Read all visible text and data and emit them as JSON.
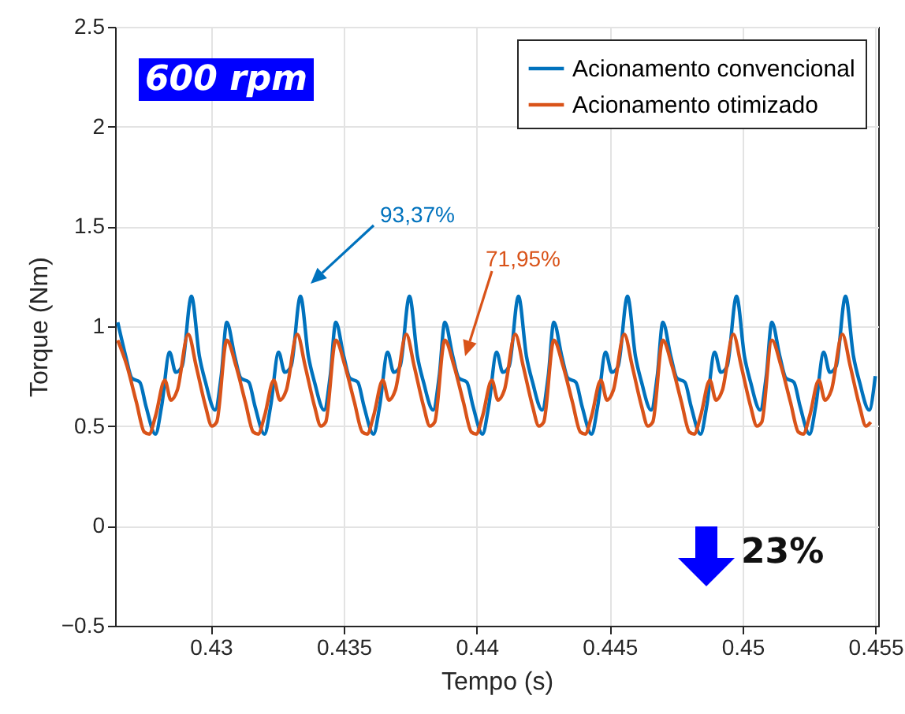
{
  "chart_data": {
    "type": "line",
    "xlabel": "Tempo (s)",
    "ylabel": "Torque (Nm)",
    "xlim": [
      0.4264,
      0.4551
    ],
    "ylim": [
      -0.5,
      2.5
    ],
    "xticks": [
      0.43,
      0.435,
      0.44,
      0.445,
      0.45,
      0.455
    ],
    "yticks": [
      -0.5,
      0,
      0.5,
      1,
      1.5,
      2,
      2.5
    ],
    "grid": true,
    "legend": "top right",
    "series": [
      {
        "name": "Acionamento convencional",
        "color": "#0072bd",
        "x": [
          0.4265,
          0.4268,
          0.42703,
          0.42733,
          0.42756,
          0.42792,
          0.42815,
          0.42845,
          0.42868,
          0.42892,
          0.42927,
          0.42957,
          0.4298,
          0.43016,
          0.43039,
          0.4306,
          0.4309,
          0.43113,
          0.43143,
          0.43166,
          0.43202,
          0.43225,
          0.43255,
          0.43278,
          0.43302,
          0.43337,
          0.43367,
          0.4339,
          0.43426,
          0.43449,
          0.4347,
          0.435,
          0.43523,
          0.43553,
          0.43576,
          0.43612,
          0.43635,
          0.43665,
          0.43688,
          0.43712,
          0.43747,
          0.43777,
          0.438,
          0.43836,
          0.43859,
          0.4388,
          0.4391,
          0.43933,
          0.43963,
          0.43986,
          0.44022,
          0.44045,
          0.44075,
          0.44098,
          0.44122,
          0.44157,
          0.44187,
          0.4421,
          0.44246,
          0.44269,
          0.4429,
          0.4432,
          0.44343,
          0.44373,
          0.44396,
          0.44432,
          0.44455,
          0.44485,
          0.44508,
          0.44532,
          0.44567,
          0.44597,
          0.4462,
          0.44656,
          0.44679,
          0.447,
          0.4473,
          0.44753,
          0.44783,
          0.44806,
          0.44842,
          0.44865,
          0.44895,
          0.44918,
          0.44942,
          0.44977,
          0.45007,
          0.4503,
          0.45066,
          0.45089,
          0.4511,
          0.4514,
          0.45163,
          0.45193,
          0.45216,
          0.45252,
          0.45275,
          0.45305,
          0.45328,
          0.45352,
          0.45387,
          0.45417,
          0.4544,
          0.45476,
          0.45499
        ],
        "values": [
          1.02,
          0.85,
          0.74,
          0.72,
          0.6,
          0.46,
          0.6,
          0.87,
          0.77,
          0.8,
          1.15,
          0.85,
          0.72,
          0.58,
          0.75,
          1.02,
          0.85,
          0.74,
          0.72,
          0.6,
          0.46,
          0.6,
          0.87,
          0.77,
          0.8,
          1.15,
          0.85,
          0.72,
          0.58,
          0.75,
          1.02,
          0.85,
          0.74,
          0.72,
          0.6,
          0.46,
          0.6,
          0.87,
          0.77,
          0.8,
          1.15,
          0.85,
          0.72,
          0.58,
          0.75,
          1.02,
          0.85,
          0.74,
          0.72,
          0.6,
          0.46,
          0.6,
          0.87,
          0.77,
          0.8,
          1.15,
          0.85,
          0.72,
          0.58,
          0.75,
          1.02,
          0.85,
          0.74,
          0.72,
          0.6,
          0.46,
          0.6,
          0.87,
          0.77,
          0.8,
          1.15,
          0.85,
          0.72,
          0.58,
          0.75,
          1.02,
          0.85,
          0.74,
          0.72,
          0.6,
          0.46,
          0.6,
          0.87,
          0.77,
          0.8,
          1.15,
          0.85,
          0.72,
          0.58,
          0.75,
          1.02,
          0.85,
          0.74,
          0.72,
          0.6,
          0.46,
          0.6,
          0.87,
          0.77,
          0.8,
          1.15,
          0.85,
          0.72,
          0.58,
          0.75
        ]
      },
      {
        "name": "Acionamento otimizado",
        "color": "#d95319",
        "x": [
          0.4265,
          0.42685,
          0.4272,
          0.4275,
          0.42768,
          0.42792,
          0.42827,
          0.4285,
          0.42874,
          0.42915,
          0.42945,
          0.4298,
          0.43004,
          0.43022,
          0.4306,
          0.43095,
          0.4313,
          0.4316,
          0.43178,
          0.43202,
          0.43237,
          0.4326,
          0.43284,
          0.43325,
          0.43355,
          0.4339,
          0.43414,
          0.43432,
          0.4347,
          0.43505,
          0.4354,
          0.4357,
          0.43588,
          0.43612,
          0.43647,
          0.4367,
          0.43694,
          0.43735,
          0.43765,
          0.438,
          0.43824,
          0.43842,
          0.4388,
          0.43915,
          0.4395,
          0.4398,
          0.43998,
          0.44022,
          0.44057,
          0.4408,
          0.44104,
          0.44145,
          0.44175,
          0.4421,
          0.44234,
          0.44252,
          0.4429,
          0.44325,
          0.4436,
          0.4439,
          0.44408,
          0.44432,
          0.44467,
          0.4449,
          0.44514,
          0.44555,
          0.44585,
          0.4462,
          0.44644,
          0.44662,
          0.447,
          0.44735,
          0.4477,
          0.448,
          0.44818,
          0.44842,
          0.44877,
          0.449,
          0.44924,
          0.44965,
          0.44995,
          0.4503,
          0.45054,
          0.45072,
          0.4511,
          0.45145,
          0.4518,
          0.4521,
          0.45228,
          0.45252,
          0.45287,
          0.4531,
          0.45334,
          0.45375,
          0.45405,
          0.4544,
          0.45464,
          0.45482
        ],
        "values": [
          0.93,
          0.8,
          0.62,
          0.47,
          0.46,
          0.55,
          0.73,
          0.63,
          0.68,
          0.96,
          0.8,
          0.6,
          0.5,
          0.52,
          0.93,
          0.8,
          0.62,
          0.47,
          0.46,
          0.55,
          0.73,
          0.63,
          0.68,
          0.96,
          0.8,
          0.6,
          0.5,
          0.52,
          0.93,
          0.8,
          0.62,
          0.47,
          0.46,
          0.55,
          0.73,
          0.63,
          0.68,
          0.96,
          0.8,
          0.6,
          0.5,
          0.52,
          0.93,
          0.8,
          0.62,
          0.47,
          0.46,
          0.55,
          0.73,
          0.63,
          0.68,
          0.96,
          0.8,
          0.6,
          0.5,
          0.52,
          0.93,
          0.8,
          0.62,
          0.47,
          0.46,
          0.55,
          0.73,
          0.63,
          0.68,
          0.96,
          0.8,
          0.6,
          0.5,
          0.52,
          0.93,
          0.8,
          0.62,
          0.47,
          0.46,
          0.55,
          0.73,
          0.63,
          0.68,
          0.96,
          0.8,
          0.6,
          0.5,
          0.52,
          0.93,
          0.8,
          0.62,
          0.47,
          0.46,
          0.55,
          0.73,
          0.63,
          0.68,
          0.96,
          0.8,
          0.6,
          0.5,
          0.52
        ]
      }
    ],
    "annotations": [
      "93,37%",
      "71,95%",
      "600 rpm",
      "23%"
    ]
  }
}
